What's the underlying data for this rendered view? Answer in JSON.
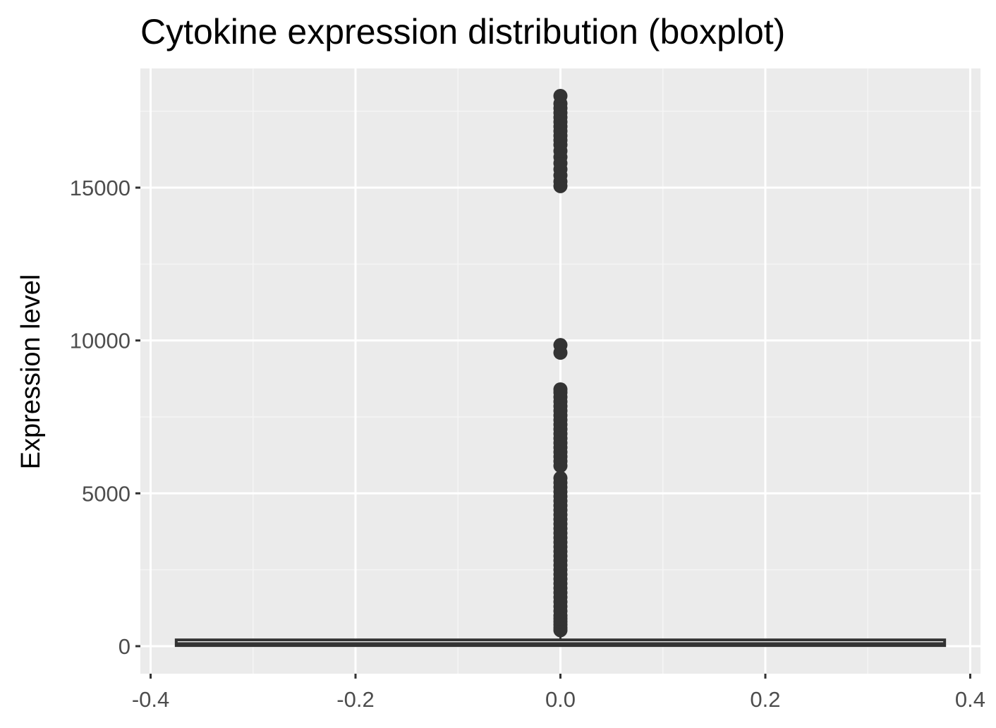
{
  "chart_data": {
    "type": "boxplot",
    "title": "Cytokine expression distribution (boxplot)",
    "xlabel": "",
    "ylabel": "Expression level",
    "xlim": [
      -0.41,
      0.41
    ],
    "ylim": [
      -900,
      18900
    ],
    "x_ticks": [
      -0.4,
      -0.2,
      0.0,
      0.2,
      0.4
    ],
    "x_tick_labels": [
      "-0.4",
      "-0.2",
      "0.0",
      "0.2",
      "0.4"
    ],
    "y_ticks": [
      0,
      5000,
      10000,
      15000
    ],
    "y_tick_labels": [
      "0",
      "5000",
      "10000",
      "15000"
    ],
    "grid": true,
    "legend": "none",
    "box": {
      "x_center": 0.0,
      "x_extent": [
        -0.375,
        0.375
      ],
      "q1": 20,
      "median": 60,
      "q3": 160,
      "whisker_low": 0,
      "whisker_high": 400
    },
    "outliers": {
      "x": 0.0,
      "y": [
        520,
        600,
        700,
        800,
        900,
        1000,
        1150,
        1300,
        1450,
        1600,
        1750,
        1900,
        2050,
        2200,
        2350,
        2500,
        2650,
        2800,
        2950,
        3100,
        3250,
        3400,
        3550,
        3700,
        3850,
        4000,
        4150,
        4300,
        4450,
        4600,
        4750,
        4900,
        5050,
        5200,
        5350,
        5500,
        5900,
        6050,
        6200,
        6350,
        6500,
        6650,
        6800,
        6950,
        7100,
        7250,
        7400,
        7550,
        7700,
        7850,
        8000,
        8150,
        8300,
        8400,
        9600,
        9850,
        15050,
        15200,
        15400,
        15600,
        15800,
        16000,
        16200,
        16400,
        16550,
        16700,
        16850,
        17000,
        17150,
        17300,
        17450,
        17600,
        17750,
        18000
      ]
    },
    "colors": {
      "panel_background": "#ebebeb",
      "grid_major": "#ffffff",
      "grid_minor": "#f5f5f5",
      "mark": "#333333",
      "tick_label": "#4d4d4d",
      "tick_mark": "#333333"
    }
  }
}
